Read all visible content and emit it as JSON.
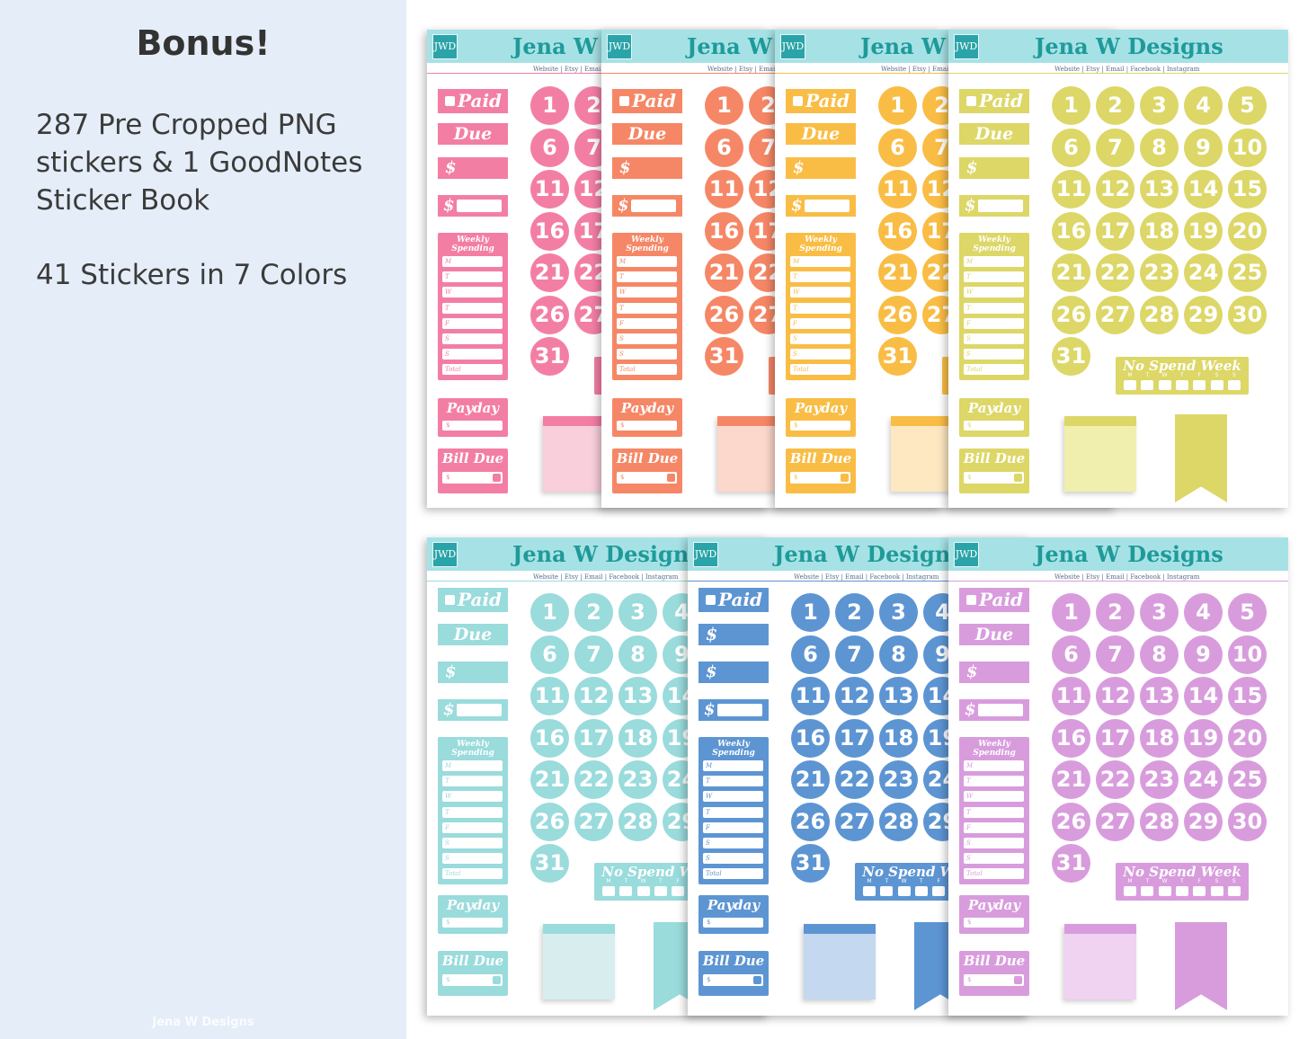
{
  "panel": {
    "title": "Bonus!",
    "lines": [
      "287 Pre Cropped PNG",
      "stickers & 1 GoodNotes",
      "Sticker Book",
      "41 Stickers in 7 Colors"
    ],
    "watermark": "Jena W Designs"
  },
  "sheet_common": {
    "brand": "Jena W Designs",
    "logo": "JWD",
    "links": "Website  |  Etsy  |  Email  |  Facebook  |  Instagram",
    "paid": "Paid",
    "due": "Due",
    "dollar": "$",
    "weekly": "Weekly",
    "spending": "Spending",
    "days": [
      "M",
      "T",
      "W",
      "T",
      "F",
      "S",
      "S"
    ],
    "total": "Total",
    "payday": "Payday",
    "bill_due": "Bill Due",
    "no_spend": "No Spend Week",
    "ns_days": [
      "M",
      "T",
      "W",
      "T",
      "F",
      "S",
      "S"
    ],
    "numbers": [
      "1",
      "2",
      "3",
      "4",
      "5",
      "6",
      "7",
      "8",
      "9",
      "10",
      "11",
      "12",
      "13",
      "14",
      "15",
      "16",
      "17",
      "18",
      "19",
      "20",
      "21",
      "22",
      "23",
      "24",
      "25",
      "26",
      "27",
      "28",
      "29",
      "30",
      "31"
    ]
  },
  "sheets": [
    {
      "color_name": "pink",
      "main": "#f37ea4",
      "light": "#f9cfdb"
    },
    {
      "color_name": "coral",
      "main": "#f58766",
      "light": "#fcd7cb"
    },
    {
      "color_name": "orange",
      "main": "#f9bd45",
      "light": "#fde8c1"
    },
    {
      "color_name": "yellow",
      "main": "#dcd767",
      "light": "#f1efad"
    },
    {
      "color_name": "aqua",
      "main": "#9adbdc",
      "light": "#d8eeee"
    },
    {
      "color_name": "blue",
      "main": "#5d95d3",
      "light": "#c4d8ef"
    },
    {
      "color_name": "purple",
      "main": "#d89cdd",
      "light": "#efd3f1"
    }
  ],
  "colors": {
    "header_bg": "#a6e2e5",
    "brand_text": "#1f9a9a",
    "panel_bg": "#e5eef8"
  }
}
